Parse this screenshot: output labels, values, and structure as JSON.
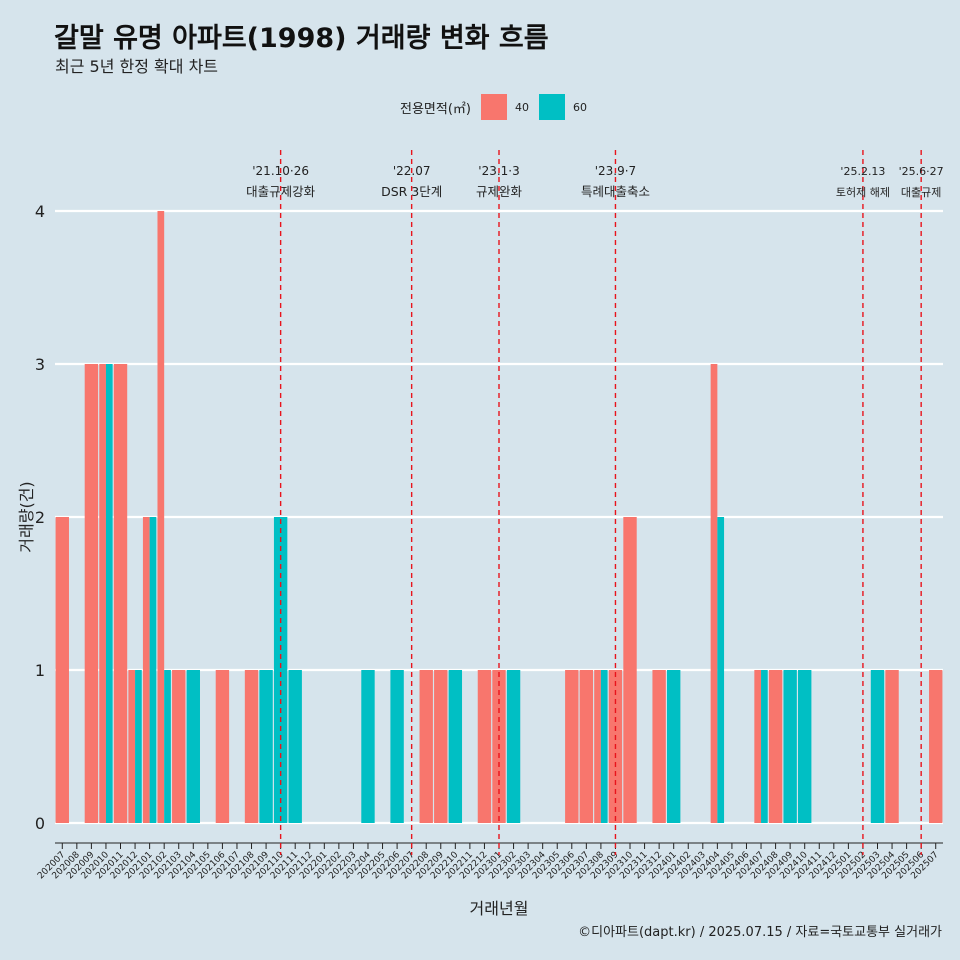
{
  "header": {
    "title": "갈말 유명 아파트(1998) 거래량 변화 흐름",
    "subtitle": "최근 5년 한정 확대 차트"
  },
  "caption": "©디아파트(dapt.kr) / 2025.07.15 / 자료=국토교통부 실거래가",
  "legend": {
    "title": "전용면적(㎡)",
    "items": [
      {
        "label": "40",
        "color": "#f8766d"
      },
      {
        "label": "60",
        "color": "#00bfc4"
      }
    ]
  },
  "chart_data": {
    "type": "bar",
    "title": "갈말 유명 아파트(1998) 거래량 변화 흐름",
    "subtitle": "최근 5년 한정 확대 차트",
    "xlabel": "거래년월",
    "ylabel": "거래량(건)",
    "ylim": [
      0,
      4
    ],
    "yticks": [
      0,
      1,
      2,
      3,
      4
    ],
    "grid": "horizontal",
    "legend_placement": "top",
    "categories": [
      "202007",
      "202008",
      "202009",
      "202010",
      "202011",
      "202012",
      "202101",
      "202102",
      "202103",
      "202104",
      "202105",
      "202106",
      "202107",
      "202108",
      "202109",
      "202110",
      "202111",
      "202112",
      "202201",
      "202202",
      "202203",
      "202204",
      "202205",
      "202206",
      "202207",
      "202208",
      "202209",
      "202210",
      "202211",
      "202212",
      "202301",
      "202302",
      "202303",
      "202304",
      "202305",
      "202306",
      "202307",
      "202308",
      "202309",
      "202310",
      "202311",
      "202312",
      "202401",
      "202402",
      "202403",
      "202404",
      "202405",
      "202406",
      "202407",
      "202408",
      "202409",
      "202410",
      "202411",
      "202412",
      "202501",
      "202502",
      "202503",
      "202504",
      "202505",
      "202506",
      "202507"
    ],
    "series": [
      {
        "name": "40",
        "color": "#f8766d",
        "values": [
          2,
          0,
          3,
          3,
          3,
          1,
          2,
          4,
          1,
          0,
          0,
          1,
          0,
          1,
          0,
          0,
          0,
          0,
          0,
          0,
          0,
          0,
          0,
          0,
          0,
          1,
          1,
          0,
          0,
          1,
          1,
          0,
          0,
          0,
          0,
          1,
          1,
          1,
          1,
          2,
          0,
          1,
          0,
          0,
          0,
          3,
          0,
          0,
          1,
          1,
          0,
          0,
          0,
          0,
          0,
          0,
          0,
          1,
          0,
          0,
          1
        ]
      },
      {
        "name": "60",
        "color": "#00bfc4",
        "values": [
          0,
          0,
          0,
          3,
          0,
          1,
          2,
          1,
          0,
          1,
          0,
          0,
          0,
          0,
          1,
          2,
          1,
          0,
          0,
          0,
          0,
          1,
          0,
          1,
          0,
          0,
          0,
          1,
          0,
          0,
          0,
          1,
          0,
          0,
          0,
          0,
          0,
          1,
          0,
          0,
          0,
          0,
          1,
          0,
          0,
          2,
          0,
          0,
          1,
          0,
          1,
          1,
          0,
          0,
          0,
          0,
          1,
          0,
          0,
          0,
          0
        ]
      }
    ],
    "annotations": [
      {
        "category": "202110",
        "date": "'21.10·26",
        "label": "대출규제강화"
      },
      {
        "category": "202207",
        "date": "'22.07",
        "label": "DSR 3단계"
      },
      {
        "category": "202301",
        "date": "'23.1·3",
        "label": "규제완화"
      },
      {
        "category": "202309",
        "date": "'23.9·7",
        "label": "특례대출축소"
      },
      {
        "category": "202502",
        "date": "'25.2.13",
        "label": "토허제 해제"
      },
      {
        "category": "202506",
        "date": "'25.6·27",
        "label": "대출규제"
      }
    ]
  }
}
